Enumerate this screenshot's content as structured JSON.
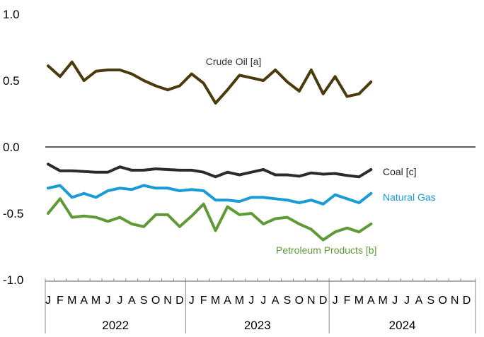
{
  "chart_data": {
    "type": "line",
    "title": "",
    "xlabel": "",
    "ylabel": "",
    "ylim": [
      -1.0,
      1.0
    ],
    "y_ticks": [
      {
        "value": 1.0,
        "label": "1.0"
      },
      {
        "value": 0.5,
        "label": "0.5"
      },
      {
        "value": 0.0,
        "label": "0.0"
      },
      {
        "value": -0.5,
        "label": "-0.5"
      },
      {
        "value": -1.0,
        "label": "-1.0"
      }
    ],
    "month_letters": [
      "J",
      "F",
      "M",
      "A",
      "M",
      "J",
      "J",
      "A",
      "S",
      "O",
      "N",
      "D"
    ],
    "years": [
      "2022",
      "2023",
      "2024"
    ],
    "zero_line": true,
    "grid": false,
    "legend": "inline labels",
    "series": [
      {
        "name": "Crude Oil [a]",
        "color": "#4a3a0c",
        "values": [
          0.61,
          0.53,
          0.64,
          0.5,
          0.57,
          0.58,
          0.58,
          0.55,
          0.5,
          0.46,
          0.43,
          0.46,
          0.55,
          0.48,
          0.33,
          0.43,
          0.54,
          0.52,
          0.5,
          0.58,
          0.49,
          0.42,
          0.58,
          0.4,
          0.53,
          0.38,
          0.4,
          0.49
        ]
      },
      {
        "name": "Coal [c]",
        "color": "#2b2b2b",
        "values": [
          -0.13,
          -0.18,
          -0.18,
          -0.185,
          -0.19,
          -0.19,
          -0.15,
          -0.175,
          -0.175,
          -0.165,
          -0.17,
          -0.175,
          -0.175,
          -0.19,
          -0.225,
          -0.19,
          -0.21,
          -0.19,
          -0.17,
          -0.21,
          -0.21,
          -0.22,
          -0.195,
          -0.205,
          -0.2,
          -0.215,
          -0.225,
          -0.17
        ]
      },
      {
        "name": "Natural Gas",
        "color": "#1a9ad6",
        "values": [
          -0.31,
          -0.29,
          -0.38,
          -0.35,
          -0.38,
          -0.33,
          -0.31,
          -0.32,
          -0.29,
          -0.31,
          -0.31,
          -0.33,
          -0.32,
          -0.33,
          -0.4,
          -0.4,
          -0.41,
          -0.38,
          -0.38,
          -0.39,
          -0.4,
          -0.42,
          -0.4,
          -0.43,
          -0.36,
          -0.39,
          -0.42,
          -0.35
        ]
      },
      {
        "name": "Petroleum Products [b]",
        "color": "#5e9a35",
        "values": [
          -0.5,
          -0.39,
          -0.53,
          -0.52,
          -0.53,
          -0.56,
          -0.53,
          -0.58,
          -0.6,
          -0.51,
          -0.51,
          -0.6,
          -0.52,
          -0.43,
          -0.63,
          -0.45,
          -0.51,
          -0.5,
          -0.58,
          -0.54,
          -0.53,
          -0.58,
          -0.62,
          -0.7,
          -0.64,
          -0.61,
          -0.64,
          -0.58
        ]
      }
    ]
  }
}
